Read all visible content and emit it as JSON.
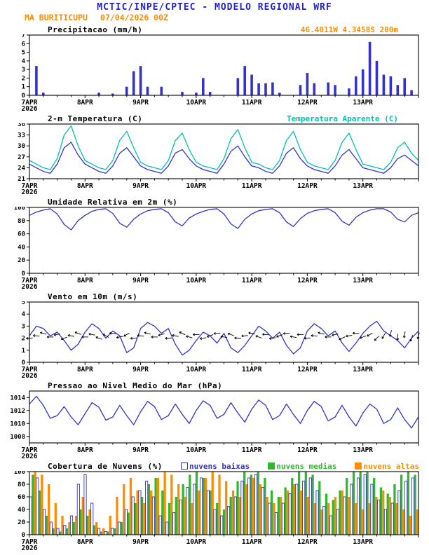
{
  "header": {
    "title": "MCTIC/INPE/CPTEC - MODELO REGIONAL WRF",
    "station": "MA BURITICUPU",
    "run": "07/04/2026 00Z",
    "location": "46.4011W 4.3458S 200m"
  },
  "colors": {
    "title_blue": "#2222cc",
    "orange": "#ff8c00",
    "line_blue": "#3333cc",
    "apparent_cyan": "#00c2ad",
    "cloud_green": "#2eb82e",
    "cloud_orange": "#ff8c00",
    "barb_black": "#000000"
  },
  "x_axis": {
    "labels": [
      "7APR",
      "8APR",
      "9APR",
      "10APR",
      "11APR",
      "12APR",
      "13APR"
    ],
    "year": "2026",
    "hours_total": 168,
    "tick_hours": [
      0,
      24,
      48,
      72,
      96,
      120,
      144
    ],
    "hours": [
      0,
      3,
      6,
      9,
      12,
      15,
      18,
      21,
      24,
      27,
      30,
      33,
      36,
      39,
      42,
      45,
      48,
      51,
      54,
      57,
      60,
      63,
      66,
      69,
      72,
      75,
      78,
      81,
      84,
      87,
      90,
      93,
      96,
      99,
      102,
      105,
      108,
      111,
      114,
      117,
      120,
      123,
      126,
      129,
      132,
      135,
      138,
      141,
      144,
      147,
      150,
      153,
      156,
      159,
      162,
      165,
      168
    ]
  },
  "chart_data": [
    {
      "id": "precipitation",
      "type": "bar",
      "kind": "bar",
      "title": "Precipitacao (mm/h)",
      "ylabel": "mm/h",
      "ylim": [
        0,
        7
      ],
      "yticks": [
        0,
        1,
        2,
        3,
        4,
        5,
        6,
        7
      ],
      "color": "#3333cc",
      "values": [
        0,
        3.4,
        0.3,
        0,
        0,
        0,
        0,
        0,
        0,
        0,
        0.3,
        0,
        0.2,
        0,
        1.0,
        2.8,
        3.4,
        1.0,
        0,
        1.0,
        0,
        0,
        0.4,
        0,
        0.3,
        2.0,
        0.4,
        0,
        0,
        0,
        2.0,
        3.4,
        2.4,
        1.4,
        1.4,
        1.5,
        0.3,
        0,
        0,
        1.2,
        2.6,
        1.4,
        0,
        1.5,
        1.2,
        0,
        0.8,
        2.2,
        3.0,
        6.2,
        4.0,
        2.4,
        2.2,
        1.2,
        2.0,
        0.6,
        0
      ]
    },
    {
      "id": "temperature",
      "type": "line",
      "kind": "lines",
      "title": "2-m Temperatura (C)",
      "ylim": [
        21,
        36
      ],
      "yticks": [
        21,
        24,
        27,
        30,
        33,
        36
      ],
      "series": [
        {
          "name": "2-m Temperatura (C)",
          "color": "#3333cc",
          "values": [
            25.0,
            24.0,
            23.0,
            22.5,
            25.0,
            29.5,
            31.0,
            27.5,
            25.0,
            24.0,
            23.0,
            22.5,
            24.5,
            28.0,
            29.5,
            27.0,
            24.5,
            23.5,
            23.0,
            22.5,
            24.5,
            28.0,
            29.0,
            26.5,
            24.5,
            23.5,
            23.0,
            22.5,
            25.0,
            28.5,
            30.0,
            27.0,
            24.5,
            24.0,
            23.0,
            22.5,
            24.5,
            28.0,
            29.5,
            26.5,
            24.5,
            23.5,
            23.0,
            22.5,
            24.5,
            27.5,
            29.0,
            26.5,
            24.0,
            23.5,
            23.0,
            22.5,
            24.0,
            26.5,
            27.5,
            26.0,
            24.5
          ]
        },
        {
          "name": "Temperatura Aparente (C)",
          "color": "#00c2ad",
          "values": [
            26.0,
            25.0,
            24.0,
            23.5,
            26.5,
            33.0,
            35.5,
            30.0,
            26.0,
            25.0,
            24.0,
            23.5,
            26.0,
            31.5,
            34.0,
            29.5,
            25.5,
            24.5,
            24.0,
            23.5,
            26.0,
            31.5,
            33.5,
            29.0,
            25.5,
            24.5,
            24.0,
            23.5,
            26.5,
            32.0,
            34.5,
            29.5,
            25.5,
            25.0,
            24.0,
            23.5,
            26.0,
            31.5,
            34.0,
            29.0,
            25.5,
            24.5,
            24.0,
            23.5,
            26.0,
            31.0,
            33.5,
            29.0,
            25.0,
            24.5,
            24.0,
            23.5,
            25.5,
            29.5,
            31.0,
            28.0,
            26.0
          ]
        }
      ]
    },
    {
      "id": "humidity",
      "type": "line",
      "kind": "lines",
      "title": "Umidade Relativa em 2m (%)",
      "ylim": [
        0,
        100
      ],
      "yticks": [
        0,
        20,
        40,
        60,
        80,
        100
      ],
      "series": [
        {
          "color": "#3333cc",
          "values": [
            88,
            93,
            96,
            98,
            90,
            74,
            66,
            80,
            88,
            94,
            97,
            98,
            91,
            76,
            70,
            82,
            90,
            95,
            97,
            98,
            92,
            78,
            72,
            84,
            90,
            94,
            97,
            98,
            90,
            75,
            68,
            82,
            90,
            95,
            97,
            98,
            92,
            78,
            71,
            83,
            91,
            95,
            97,
            98,
            92,
            79,
            73,
            85,
            92,
            96,
            98,
            98,
            93,
            82,
            78,
            88,
            92
          ]
        }
      ]
    },
    {
      "id": "wind",
      "type": "line",
      "kind": "wind",
      "title": "Vento em 10m (m/s)",
      "ylim": [
        0,
        5
      ],
      "yticks": [
        0,
        1,
        2,
        3,
        4,
        5
      ],
      "series": [
        {
          "color": "#3333cc",
          "values": [
            2.2,
            3.0,
            2.8,
            2.2,
            2.5,
            1.8,
            1.0,
            1.5,
            2.5,
            3.2,
            2.8,
            2.0,
            2.6,
            2.2,
            0.8,
            1.2,
            2.8,
            3.3,
            3.0,
            2.4,
            2.8,
            1.5,
            0.6,
            1.0,
            1.8,
            2.5,
            2.2,
            1.6,
            2.4,
            1.2,
            0.8,
            1.4,
            2.2,
            3.0,
            2.6,
            2.0,
            2.5,
            1.4,
            0.7,
            1.2,
            2.6,
            3.2,
            2.8,
            2.2,
            2.6,
            1.6,
            0.9,
            1.6,
            2.4,
            3.0,
            3.4,
            2.6,
            2.2,
            1.8,
            1.2,
            2.0,
            2.6
          ]
        }
      ],
      "barbs": {
        "level": 2.2,
        "color": "#000000",
        "directions_deg": [
          185,
          175,
          165,
          180,
          190,
          200,
          170,
          160,
          180,
          170,
          160,
          150,
          175,
          190,
          210,
          185,
          175,
          165,
          180,
          195,
          185,
          170,
          155,
          165,
          180,
          190,
          200,
          185,
          170,
          160,
          175,
          185,
          170,
          160,
          175,
          190,
          200,
          185,
          170,
          180,
          185,
          175,
          165,
          180,
          195,
          205,
          190,
          175,
          200,
          210,
          225,
          240,
          255,
          270,
          260,
          250,
          255
        ]
      }
    },
    {
      "id": "pressure",
      "type": "line",
      "kind": "lines",
      "title": "Pressao ao Nivel Medio do Mar (hPa)",
      "ylim": [
        1007,
        1015
      ],
      "yticks": [
        1008,
        1010,
        1012,
        1014
      ],
      "series": [
        {
          "color": "#3333cc",
          "values": [
            1013.0,
            1014.2,
            1012.8,
            1010.8,
            1011.2,
            1012.6,
            1011.0,
            1009.8,
            1011.5,
            1013.2,
            1012.5,
            1010.5,
            1011.0,
            1012.8,
            1011.2,
            1009.8,
            1011.8,
            1013.4,
            1012.6,
            1010.6,
            1011.2,
            1013.0,
            1011.4,
            1010.0,
            1012.0,
            1013.5,
            1012.8,
            1010.8,
            1011.4,
            1013.2,
            1011.6,
            1010.2,
            1012.2,
            1013.6,
            1012.8,
            1010.6,
            1011.2,
            1013.0,
            1011.4,
            1010.0,
            1012.0,
            1013.4,
            1012.6,
            1010.4,
            1011.0,
            1012.8,
            1011.0,
            1009.6,
            1011.6,
            1013.0,
            1012.2,
            1010.0,
            1010.6,
            1012.4,
            1010.6,
            1009.3,
            1011.0
          ]
        }
      ]
    },
    {
      "id": "clouds",
      "type": "bar",
      "kind": "cloudbars",
      "title": "Cobertura de Nuvens (%)",
      "ylim": [
        0,
        100
      ],
      "yticks": [
        0,
        20,
        40,
        60,
        80,
        100
      ],
      "series": [
        {
          "name": "nuvens baixas",
          "color": "#3333cc",
          "style": "hollow",
          "values": [
            60,
            90,
            40,
            20,
            10,
            15,
            30,
            80,
            95,
            50,
            10,
            5,
            10,
            20,
            40,
            60,
            70,
            85,
            60,
            30,
            20,
            35,
            55,
            75,
            80,
            90,
            70,
            40,
            30,
            45,
            60,
            85,
            90,
            95,
            75,
            50,
            35,
            50,
            65,
            80,
            85,
            90,
            70,
            45,
            30,
            40,
            60,
            80,
            90,
            95,
            80,
            55,
            40,
            50,
            70,
            85,
            90
          ]
        },
        {
          "name": "nuvens medias",
          "color": "#2eb82e",
          "style": "filled",
          "values": [
            95,
            70,
            30,
            10,
            5,
            10,
            20,
            40,
            30,
            15,
            5,
            5,
            10,
            20,
            35,
            50,
            60,
            80,
            90,
            70,
            50,
            60,
            80,
            95,
            100,
            90,
            70,
            50,
            40,
            60,
            85,
            100,
            95,
            100,
            90,
            70,
            60,
            75,
            90,
            100,
            100,
            95,
            85,
            65,
            55,
            70,
            90,
            100,
            100,
            100,
            90,
            75,
            65,
            80,
            95,
            100,
            95
          ]
        },
        {
          "name": "nuvens altas",
          "color": "#ff8c00",
          "style": "filled",
          "values": [
            100,
            95,
            80,
            50,
            30,
            20,
            30,
            60,
            40,
            20,
            10,
            30,
            60,
            80,
            90,
            70,
            50,
            70,
            90,
            100,
            95,
            80,
            60,
            50,
            70,
            90,
            100,
            95,
            85,
            70,
            60,
            80,
            90,
            80,
            60,
            50,
            60,
            70,
            80,
            70,
            60,
            50,
            40,
            50,
            60,
            70,
            60,
            50,
            40,
            50,
            60,
            70,
            60,
            50,
            40,
            30,
            40
          ]
        }
      ]
    }
  ]
}
